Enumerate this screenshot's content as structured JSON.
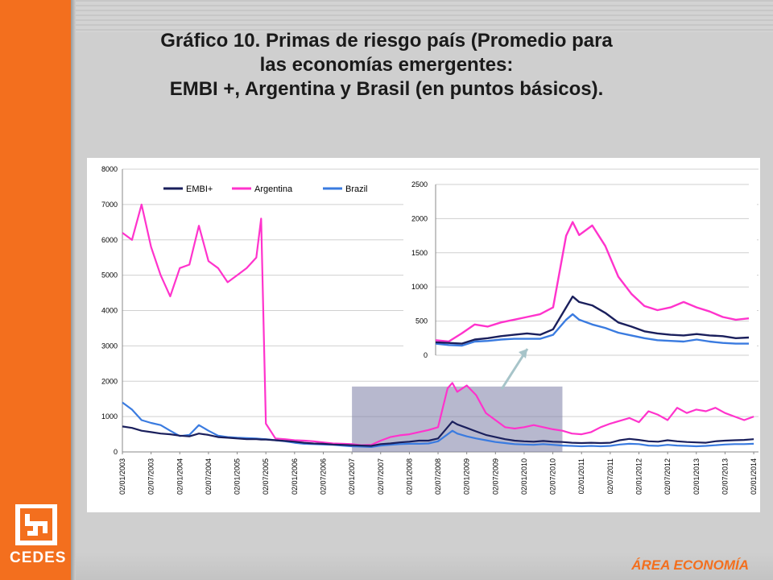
{
  "title_lines": [
    "Gráfico 10. Primas de riesgo país (Promedio para",
    "las economías emergentes:",
    "EMBI +, Argentina y Brasil (en puntos básicos)."
  ],
  "logo_text": "CEDES",
  "footer_label": "ÁREA ECONOMÍA",
  "colors": {
    "sidebar": "#f36f1e",
    "embi": "#1a1f5c",
    "argentina": "#ff33cc",
    "brazil": "#3a7be0",
    "highlight": "#7c7ea6"
  },
  "chart_data": [
    {
      "type": "line",
      "legend_position": "top",
      "grid": true,
      "ylim": [
        0,
        8000
      ],
      "yticks": [
        0,
        1000,
        2000,
        3000,
        4000,
        5000,
        6000,
        7000,
        8000
      ],
      "xtick_labels": [
        "02/01/2003",
        "02/07/2003",
        "02/01/2004",
        "02/07/2004",
        "02/01/2005",
        "02/07/2005",
        "02/01/2006",
        "02/07/2006",
        "02/01/2007",
        "02/07/2007",
        "02/01/2008",
        "02/07/2008",
        "02/01/2009",
        "02/07/2009",
        "02/01/2010",
        "02/07/2010",
        "02/01/2011",
        "02/07/2011",
        "02/01/2012",
        "02/07/2012",
        "02/01/2013",
        "02/07/2013",
        "02/01/2014"
      ],
      "x": [
        "2003-01",
        "2003-03",
        "2003-05",
        "2003-07",
        "2003-09",
        "2003-11",
        "2004-01",
        "2004-03",
        "2004-05",
        "2004-07",
        "2004-09",
        "2004-11",
        "2005-01",
        "2005-03",
        "2005-05",
        "2005-06",
        "2005-07",
        "2005-09",
        "2005-11",
        "2006-01",
        "2006-03",
        "2006-05",
        "2006-07",
        "2006-09",
        "2006-11",
        "2007-01",
        "2007-03",
        "2007-05",
        "2007-07",
        "2007-09",
        "2007-11",
        "2008-01",
        "2008-03",
        "2008-05",
        "2008-07",
        "2008-09",
        "2008-10",
        "2008-11",
        "2009-01",
        "2009-03",
        "2009-05",
        "2009-07",
        "2009-09",
        "2009-11",
        "2010-01",
        "2010-03",
        "2010-05",
        "2010-07",
        "2010-09",
        "2010-11",
        "2011-01",
        "2011-03",
        "2011-05",
        "2011-07",
        "2011-09",
        "2011-11",
        "2012-01",
        "2012-03",
        "2012-05",
        "2012-07",
        "2012-09",
        "2012-11",
        "2013-01",
        "2013-03",
        "2013-05",
        "2013-07",
        "2013-09",
        "2013-11",
        "2014-01"
      ],
      "series": [
        {
          "name": "EMBI+",
          "color": "#1a1f5c",
          "values": [
            720,
            680,
            600,
            560,
            520,
            500,
            460,
            440,
            520,
            480,
            420,
            400,
            380,
            360,
            360,
            350,
            350,
            330,
            310,
            290,
            260,
            240,
            230,
            210,
            200,
            190,
            180,
            170,
            220,
            240,
            270,
            290,
            320,
            320,
            380,
            700,
            860,
            780,
            680,
            580,
            480,
            420,
            360,
            320,
            300,
            290,
            310,
            290,
            280,
            260,
            250,
            260,
            250,
            260,
            330,
            370,
            340,
            300,
            290,
            330,
            300,
            280,
            270,
            260,
            300,
            320,
            330,
            340,
            360
          ]
        },
        {
          "name": "Argentina",
          "color": "#ff33cc",
          "values": [
            6200,
            6000,
            7000,
            5800,
            5000,
            4400,
            5200,
            5300,
            6400,
            5400,
            5200,
            4800,
            5000,
            5200,
            5500,
            6600,
            800,
            380,
            360,
            330,
            320,
            300,
            270,
            240,
            230,
            220,
            190,
            200,
            320,
            420,
            470,
            500,
            560,
            620,
            700,
            1800,
            1950,
            1700,
            1880,
            1600,
            1100,
            900,
            700,
            660,
            700,
            760,
            700,
            640,
            600,
            520,
            500,
            560,
            700,
            800,
            880,
            960,
            840,
            1150,
            1050,
            900,
            1250,
            1100,
            1200,
            1150,
            1250,
            1100,
            1000,
            900,
            1000
          ]
        },
        {
          "name": "Brazil",
          "color": "#3a7be0",
          "values": [
            1400,
            1200,
            900,
            820,
            760,
            600,
            450,
            480,
            760,
            600,
            460,
            420,
            400,
            390,
            380,
            370,
            360,
            330,
            300,
            260,
            230,
            220,
            210,
            200,
            180,
            160,
            150,
            140,
            180,
            200,
            220,
            230,
            230,
            240,
            300,
            500,
            600,
            520,
            440,
            380,
            330,
            280,
            250,
            220,
            210,
            200,
            220,
            200,
            180,
            170,
            160,
            170,
            160,
            170,
            210,
            230,
            220,
            180,
            170,
            200,
            180,
            170,
            160,
            170,
            190,
            210,
            220,
            220,
            230
          ]
        }
      ]
    },
    {
      "type": "line",
      "ylim": [
        0,
        2500
      ],
      "yticks": [
        0,
        500,
        1000,
        1500,
        2000,
        2500
      ],
      "grid": true,
      "x": [
        "2007-01",
        "2007-03",
        "2007-05",
        "2007-07",
        "2007-09",
        "2007-11",
        "2008-01",
        "2008-03",
        "2008-05",
        "2008-07",
        "2008-09",
        "2008-10",
        "2008-11",
        "2009-01",
        "2009-03",
        "2009-05",
        "2009-07",
        "2009-09",
        "2009-11",
        "2010-01",
        "2010-03",
        "2010-05",
        "2010-07",
        "2010-09",
        "2010-11",
        "2011-01"
      ],
      "series": [
        {
          "name": "EMBI+",
          "color": "#1a1f5c",
          "values": [
            190,
            180,
            170,
            230,
            250,
            280,
            300,
            320,
            300,
            380,
            700,
            860,
            780,
            730,
            620,
            480,
            420,
            350,
            320,
            300,
            290,
            310,
            290,
            280,
            250,
            260
          ]
        },
        {
          "name": "Argentina",
          "color": "#ff33cc",
          "values": [
            220,
            200,
            320,
            450,
            420,
            480,
            520,
            560,
            600,
            700,
            1750,
            1950,
            1760,
            1900,
            1600,
            1150,
            900,
            720,
            660,
            700,
            780,
            700,
            640,
            560,
            520,
            540
          ]
        },
        {
          "name": "Brazil",
          "color": "#3a7be0",
          "values": [
            170,
            150,
            140,
            200,
            210,
            230,
            240,
            240,
            240,
            300,
            520,
            600,
            520,
            450,
            400,
            330,
            290,
            250,
            220,
            210,
            200,
            230,
            200,
            180,
            170,
            170
          ]
        }
      ]
    }
  ]
}
